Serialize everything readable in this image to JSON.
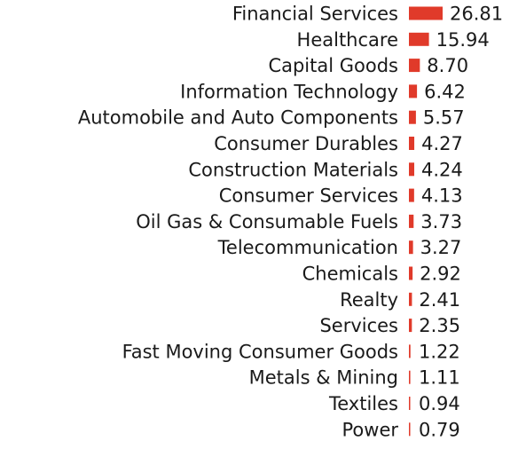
{
  "chart_data": {
    "type": "bar",
    "orientation": "horizontal",
    "title": "",
    "xlabel": "",
    "ylabel": "",
    "categories": [
      "Financial Services",
      "Healthcare",
      "Capital Goods",
      "Information Technology",
      "Automobile and Auto Components",
      "Consumer Durables",
      "Construction Materials",
      "Consumer Services",
      "Oil Gas & Consumable Fuels",
      "Telecommunication",
      "Chemicals",
      "Realty",
      "Services",
      "Fast Moving Consumer Goods",
      "Metals & Mining",
      "Textiles",
      "Power"
    ],
    "values": [
      26.81,
      15.94,
      8.7,
      6.42,
      5.57,
      4.27,
      4.24,
      4.13,
      3.73,
      3.27,
      2.92,
      2.41,
      2.35,
      1.22,
      1.11,
      0.94,
      0.79
    ],
    "value_labels": [
      "26.81",
      "15.94",
      "8.70",
      "6.42",
      "5.57",
      "4.27",
      "4.24",
      "4.13",
      "3.73",
      "3.27",
      "2.92",
      "2.41",
      "2.35",
      "1.22",
      "1.11",
      "0.94",
      "0.79"
    ],
    "xlim": [
      0,
      26.81
    ],
    "grid": false,
    "legend": "none",
    "bar_color": "#e03a2a"
  }
}
